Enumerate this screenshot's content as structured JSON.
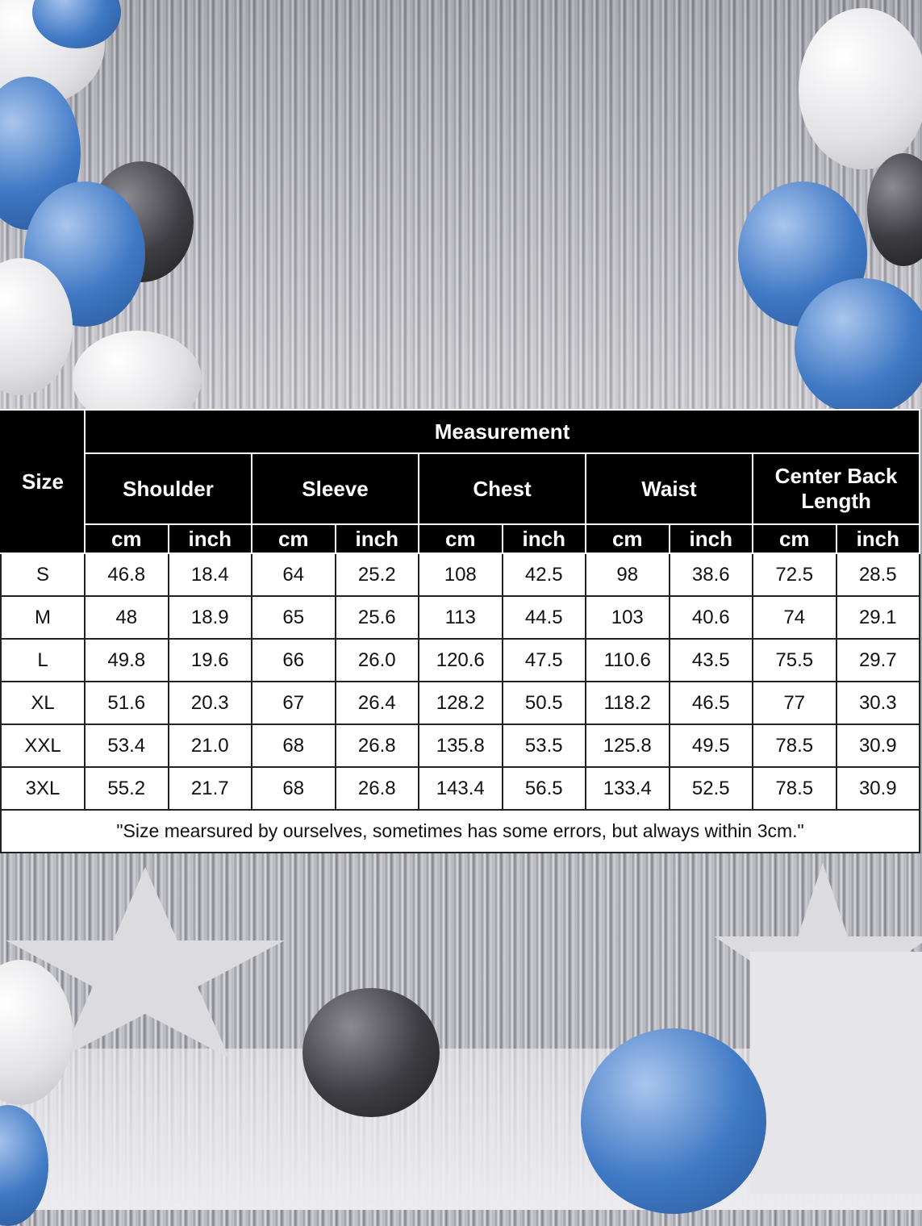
{
  "table": {
    "size_header": "Size",
    "measurement_header": "Measurement",
    "groups": [
      "Shoulder",
      "Sleeve",
      "Chest",
      "Waist",
      "Center Back Length"
    ],
    "units": [
      "cm",
      "inch",
      "cm",
      "inch",
      "cm",
      "inch",
      "cm",
      "inch",
      "cm",
      "inch"
    ],
    "rows": [
      {
        "size": "S",
        "values": [
          "46.8",
          "18.4",
          "64",
          "25.2",
          "108",
          "42.5",
          "98",
          "38.6",
          "72.5",
          "28.5"
        ]
      },
      {
        "size": "M",
        "values": [
          "48",
          "18.9",
          "65",
          "25.6",
          "113",
          "44.5",
          "103",
          "40.6",
          "74",
          "29.1"
        ]
      },
      {
        "size": "L",
        "values": [
          "49.8",
          "19.6",
          "66",
          "26.0",
          "120.6",
          "47.5",
          "110.6",
          "43.5",
          "75.5",
          "29.7"
        ]
      },
      {
        "size": "XL",
        "values": [
          "51.6",
          "20.3",
          "67",
          "26.4",
          "128.2",
          "50.5",
          "118.2",
          "46.5",
          "77",
          "30.3"
        ]
      },
      {
        "size": "XXL",
        "values": [
          "53.4",
          "21.0",
          "68",
          "26.8",
          "135.8",
          "53.5",
          "125.8",
          "49.5",
          "78.5",
          "30.9"
        ]
      },
      {
        "size": "3XL",
        "values": [
          "55.2",
          "21.7",
          "68",
          "26.8",
          "143.4",
          "56.5",
          "133.4",
          "52.5",
          "78.5",
          "30.9"
        ]
      }
    ],
    "note": "\"Size mearsured by ourselves, sometimes has some errors, but always within 3cm.\""
  },
  "colors": {
    "header_bg": "#000000",
    "header_text": "#ffffff",
    "balloon_blue": "#3f78c4"
  }
}
